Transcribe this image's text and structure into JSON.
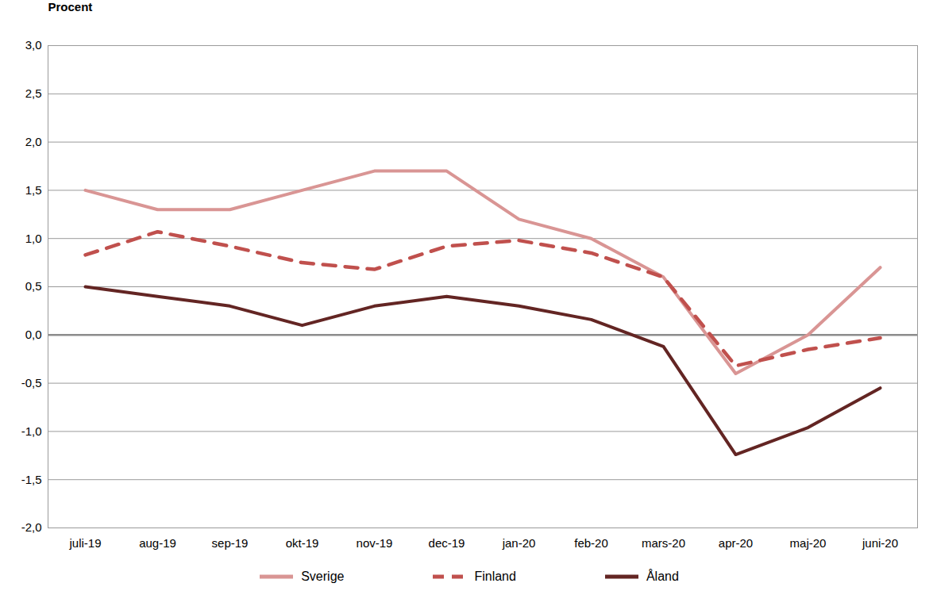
{
  "chart_data": {
    "type": "line",
    "y_label": "Procent",
    "categories": [
      "juli-19",
      "aug-19",
      "sep-19",
      "okt-19",
      "nov-19",
      "dec-19",
      "jan-20",
      "feb-20",
      "mars-20",
      "apr-20",
      "maj-20",
      "juni-20"
    ],
    "series": [
      {
        "name": "Sverige",
        "color": "#d99594",
        "line_style": "solid",
        "values": [
          1.5,
          1.3,
          1.3,
          1.5,
          1.7,
          1.7,
          1.2,
          1.0,
          0.6,
          -0.4,
          0.0,
          0.7
        ]
      },
      {
        "name": "Finland",
        "color": "#c0504d",
        "line_style": "dashed",
        "values": [
          0.83,
          1.07,
          0.92,
          0.75,
          0.68,
          0.92,
          0.98,
          0.85,
          0.6,
          -0.32,
          -0.15,
          -0.03
        ]
      },
      {
        "name": "Åland",
        "color": "#632523",
        "line_style": "solid",
        "values": [
          0.5,
          0.4,
          0.3,
          0.1,
          0.3,
          0.4,
          0.3,
          0.16,
          -0.12,
          -1.24,
          -0.96,
          -0.55
        ]
      }
    ],
    "ylim": [
      -2.0,
      3.0
    ],
    "yticks": [
      {
        "value": -2.0,
        "label": "-2,0"
      },
      {
        "value": -1.5,
        "label": "-1,5"
      },
      {
        "value": -1.0,
        "label": "-1,0"
      },
      {
        "value": -0.5,
        "label": "-0,5"
      },
      {
        "value": 0.0,
        "label": "0,0"
      },
      {
        "value": 0.5,
        "label": "0,5"
      },
      {
        "value": 1.0,
        "label": "1,0"
      },
      {
        "value": 1.5,
        "label": "1,5"
      },
      {
        "value": 2.0,
        "label": "2,0"
      },
      {
        "value": 2.5,
        "label": "2,5"
      },
      {
        "value": 3.0,
        "label": "3,0"
      }
    ],
    "grid": true,
    "legend": "bottom"
  }
}
